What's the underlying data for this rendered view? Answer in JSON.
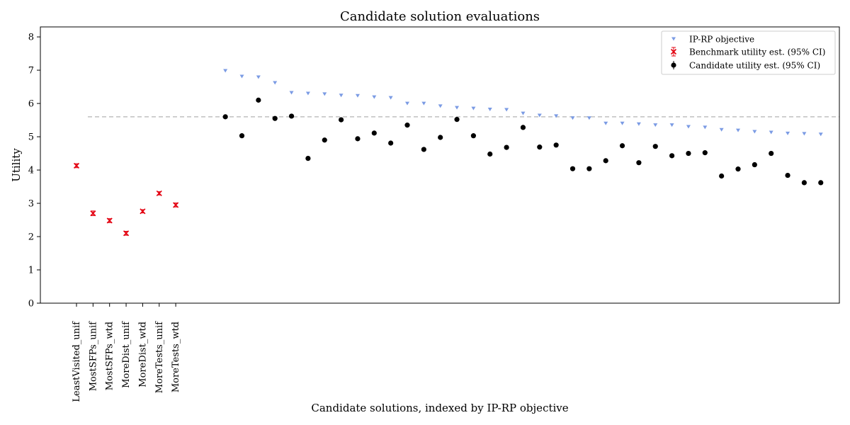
{
  "chart_data": {
    "type": "scatter",
    "title": "Candidate solution evaluations",
    "xlabel": "Candidate solutions, indexed by IP-RP objective",
    "ylabel": "Utility",
    "ylim": [
      0,
      8.3
    ],
    "yticks": [
      0,
      1,
      2,
      3,
      4,
      5,
      6,
      7,
      8
    ],
    "grid": false,
    "legend_position": "top-right",
    "benchmark_line_y": 5.6,
    "colors": {
      "objective": "#7b9be4",
      "benchmark": "#e3000f",
      "candidate": "#000000",
      "reference_line": "#c0c0c0"
    },
    "benchmarks": {
      "labels": [
        "LeastVisited_unif",
        "MostSFPs_unif",
        "MostSFPs_wtd",
        "MoreDist_unif",
        "MoreDist_wtd",
        "MoreTests_unif",
        "MoreTests_wtd"
      ],
      "x": [
        1,
        2,
        3,
        4,
        5,
        6,
        7
      ],
      "values": [
        4.13,
        2.7,
        2.48,
        2.1,
        2.76,
        3.3,
        2.95
      ],
      "ci_low": [
        4.07,
        2.63,
        2.42,
        2.04,
        2.71,
        3.25,
        2.89
      ],
      "ci_high": [
        4.19,
        2.77,
        2.54,
        2.16,
        2.81,
        3.35,
        3.01
      ]
    },
    "series": [
      {
        "name": "IP-RP objective",
        "marker": "triangle-down",
        "x": [
          10,
          11,
          12,
          13,
          14,
          15,
          16,
          17,
          18,
          19,
          20,
          21,
          22,
          23,
          24,
          25,
          26,
          27,
          28,
          29,
          30,
          31,
          32,
          33,
          34,
          35,
          36,
          37,
          38,
          39,
          40,
          41,
          42,
          43,
          44,
          45,
          46
        ],
        "values": [
          6.98,
          6.81,
          6.79,
          6.62,
          6.32,
          6.3,
          6.28,
          6.24,
          6.23,
          6.19,
          6.17,
          6.0,
          6.0,
          5.92,
          5.87,
          5.85,
          5.82,
          5.81,
          5.7,
          5.64,
          5.62,
          5.56,
          5.56,
          5.4,
          5.4,
          5.38,
          5.35,
          5.35,
          5.3,
          5.28,
          5.21,
          5.19,
          5.15,
          5.13,
          5.1,
          5.09,
          5.07
        ]
      },
      {
        "name": "Benchmark utility est. (95% CI)",
        "marker": "x-errorbar"
      },
      {
        "name": "Candidate utility est. (95% CI)",
        "marker": "circle-errorbar",
        "x": [
          10,
          11,
          12,
          13,
          14,
          15,
          16,
          17,
          18,
          19,
          20,
          21,
          22,
          23,
          24,
          25,
          26,
          27,
          28,
          29,
          30,
          31,
          32,
          33,
          34,
          35,
          36,
          37,
          38,
          39,
          40,
          41,
          42,
          43,
          44,
          45,
          46
        ],
        "values": [
          5.6,
          5.03,
          6.1,
          5.55,
          5.62,
          4.35,
          4.9,
          5.51,
          4.94,
          5.11,
          4.81,
          5.35,
          4.62,
          4.98,
          5.52,
          5.03,
          4.48,
          4.68,
          5.28,
          4.69,
          4.75,
          4.04,
          4.04,
          4.28,
          4.73,
          4.22,
          4.71,
          4.43,
          4.5,
          4.52,
          3.82,
          4.03,
          4.16,
          4.5,
          3.84,
          3.62,
          3.62
        ]
      }
    ]
  }
}
